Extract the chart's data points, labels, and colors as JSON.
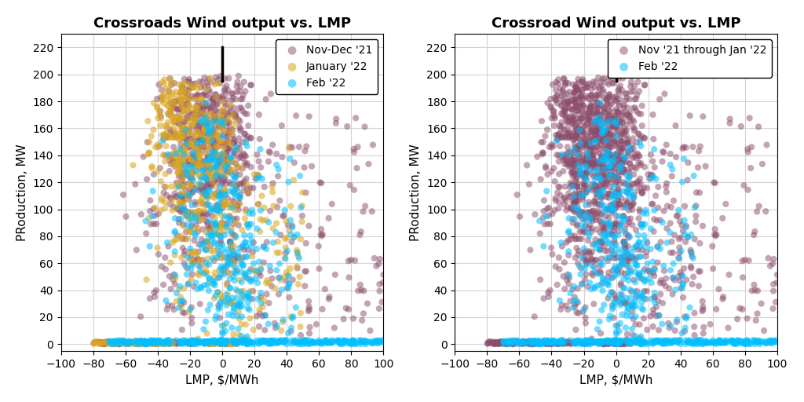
{
  "title_left": "Crossroads Wind output vs. LMP",
  "title_right": "Crossroad Wind output vs. LMP",
  "xlabel": "LMP, $/MWh",
  "ylabel": "PRoduction, MW",
  "xlim": [
    -100,
    100
  ],
  "ylim": [
    -5,
    230
  ],
  "xticks": [
    -100,
    -80,
    -60,
    -40,
    -20,
    0,
    20,
    40,
    60,
    80,
    100
  ],
  "yticks": [
    0,
    20,
    40,
    60,
    80,
    100,
    120,
    140,
    160,
    180,
    200,
    220
  ],
  "color_nov_dec": "#8B4C6B",
  "color_jan": "#DAA520",
  "color_feb": "#00BFFF",
  "legend_left": [
    "Nov-Dec '21",
    "January '22",
    "Feb '22"
  ],
  "legend_right": [
    "Nov '21 through Jan '22",
    "Feb '22"
  ],
  "vline_x": 0,
  "vline_ymin": 195,
  "vline_ymax": 220,
  "marker_size": 35,
  "alpha_nov_dec": 0.5,
  "alpha_jan": 0.55,
  "alpha_feb": 0.55,
  "seed": 42
}
